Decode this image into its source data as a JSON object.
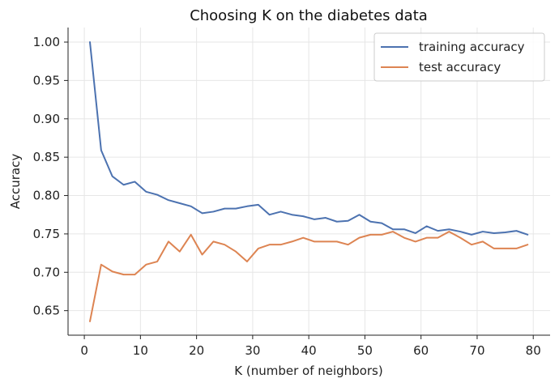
{
  "chart_data": {
    "type": "line",
    "title": "Choosing K on the diabetes data",
    "xlabel": "K (number of neighbors)",
    "ylabel": "Accuracy",
    "xlim": [
      -2.9,
      83
    ],
    "ylim": [
      0.618,
      1.019
    ],
    "xticks": [
      0,
      10,
      20,
      30,
      40,
      50,
      60,
      70,
      80
    ],
    "yticks": [
      0.65,
      0.7,
      0.75,
      0.8,
      0.85,
      0.9,
      0.95,
      1.0
    ],
    "xtick_labels": [
      "0",
      "10",
      "20",
      "30",
      "40",
      "50",
      "60",
      "70",
      "80"
    ],
    "ytick_labels": [
      "0.65",
      "0.70",
      "0.75",
      "0.80",
      "0.85",
      "0.90",
      "0.95",
      "1.00"
    ],
    "grid": true,
    "legend_position": "top-right",
    "x": [
      1,
      3,
      5,
      7,
      9,
      11,
      13,
      15,
      17,
      19,
      21,
      23,
      25,
      27,
      29,
      31,
      33,
      35,
      37,
      39,
      41,
      43,
      45,
      47,
      49,
      51,
      53,
      55,
      57,
      59,
      61,
      63,
      65,
      67,
      69,
      71,
      73,
      75,
      77,
      79
    ],
    "series": [
      {
        "name": "training accuracy",
        "color": "#4c72b0",
        "values": [
          1.0,
          0.859,
          0.825,
          0.814,
          0.818,
          0.805,
          0.801,
          0.794,
          0.79,
          0.786,
          0.777,
          0.779,
          0.783,
          0.783,
          0.786,
          0.788,
          0.775,
          0.779,
          0.775,
          0.773,
          0.769,
          0.771,
          0.766,
          0.767,
          0.775,
          0.766,
          0.764,
          0.756,
          0.756,
          0.751,
          0.76,
          0.754,
          0.756,
          0.753,
          0.749,
          0.753,
          0.751,
          0.752,
          0.754,
          0.749
        ]
      },
      {
        "name": "test accuracy",
        "color": "#dd8452",
        "values": [
          0.636,
          0.71,
          0.701,
          0.697,
          0.697,
          0.71,
          0.714,
          0.74,
          0.727,
          0.749,
          0.723,
          0.74,
          0.736,
          0.727,
          0.714,
          0.731,
          0.736,
          0.736,
          0.74,
          0.745,
          0.74,
          0.74,
          0.74,
          0.736,
          0.745,
          0.749,
          0.749,
          0.753,
          0.745,
          0.74,
          0.745,
          0.745,
          0.753,
          0.745,
          0.736,
          0.74,
          0.731,
          0.731,
          0.731,
          0.736
        ]
      }
    ]
  }
}
